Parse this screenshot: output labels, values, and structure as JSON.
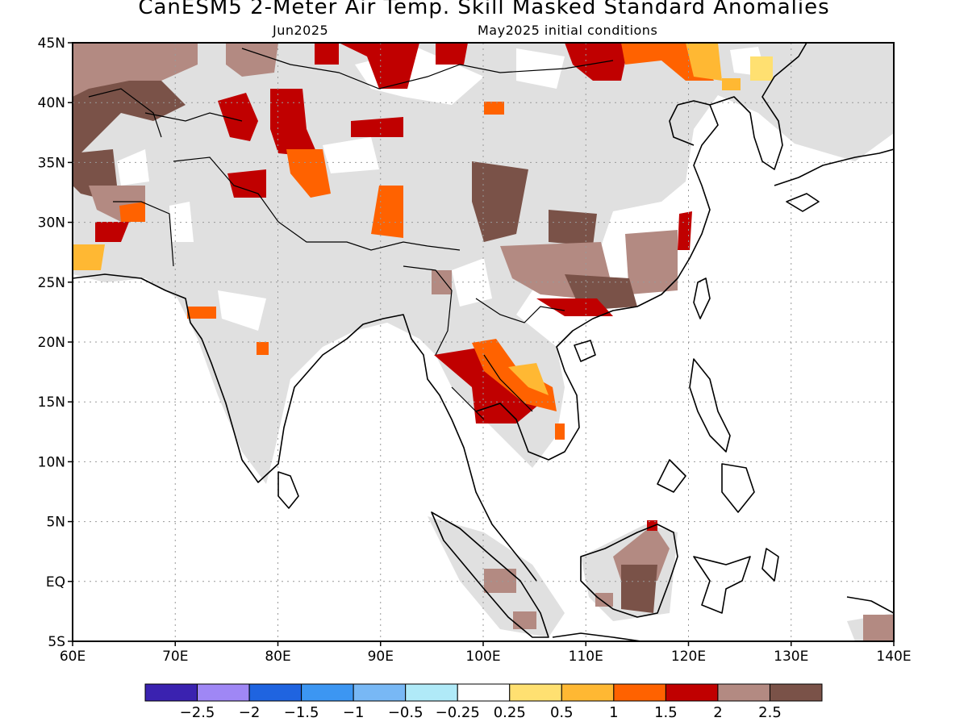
{
  "title": "CanESM5 2-Meter Air Temp. Skill Masked Standard Anomalies",
  "subtitle_left": "Jun2025",
  "subtitle_right": "May2025 initial conditions",
  "map": {
    "lon_range": [
      60,
      140
    ],
    "lat_range": [
      -5,
      45
    ],
    "grid": "dotted",
    "x_ticks": [
      {
        "value": 60,
        "label": "60E"
      },
      {
        "value": 70,
        "label": "70E"
      },
      {
        "value": 80,
        "label": "80E"
      },
      {
        "value": 90,
        "label": "90E"
      },
      {
        "value": 100,
        "label": "100E"
      },
      {
        "value": 110,
        "label": "110E"
      },
      {
        "value": 120,
        "label": "120E"
      },
      {
        "value": 130,
        "label": "130E"
      },
      {
        "value": 140,
        "label": "140E"
      }
    ],
    "y_ticks": [
      {
        "value": 45,
        "label": "45N"
      },
      {
        "value": 40,
        "label": "40N"
      },
      {
        "value": 35,
        "label": "35N"
      },
      {
        "value": 30,
        "label": "30N"
      },
      {
        "value": 25,
        "label": "25N"
      },
      {
        "value": 20,
        "label": "20N"
      },
      {
        "value": 15,
        "label": "15N"
      },
      {
        "value": 10,
        "label": "10N"
      },
      {
        "value": 5,
        "label": "5N"
      },
      {
        "value": 0,
        "label": "EQ"
      },
      {
        "value": -5,
        "label": "5S"
      }
    ],
    "skill_mask_color": "#e0e0e0",
    "anomaly_patches": [
      {
        "level": "2.5+",
        "color": "#7a5248",
        "lon": 62,
        "lat": 42
      },
      {
        "level": "2-2.5",
        "color": "#b38a82",
        "lon": 65,
        "lat": 43
      },
      {
        "level": "2.5+",
        "color": "#7a5248",
        "lon": 63,
        "lat": 37
      },
      {
        "level": "2-2.5",
        "color": "#b38a82",
        "lon": 64,
        "lat": 32
      },
      {
        "level": "1.5-2",
        "color": "#c00000",
        "lon": 62.5,
        "lat": 30
      },
      {
        "level": "0.5-1",
        "color": "#ffb833",
        "lon": 60.5,
        "lat": 27
      },
      {
        "level": "1-1.5",
        "color": "#ff6200",
        "lon": 73,
        "lat": 22.3
      },
      {
        "level": "1-1.5",
        "color": "#ff6200",
        "lon": 78.5,
        "lat": 19.6
      },
      {
        "level": "1.5-2",
        "color": "#c00000",
        "lon": 76.5,
        "lat": 39
      },
      {
        "level": "1.5-2",
        "color": "#c00000",
        "lon": 77,
        "lat": 32.5
      },
      {
        "level": "2-2.5",
        "color": "#b38a82",
        "lon": 78,
        "lat": 44
      },
      {
        "level": "1.5-2",
        "color": "#c00000",
        "lon": 82,
        "lat": 38
      },
      {
        "level": "1-1.5",
        "color": "#ff6200",
        "lon": 84,
        "lat": 34
      },
      {
        "level": "1.5-2",
        "color": "#c00000",
        "lon": 86,
        "lat": 44
      },
      {
        "level": "1.5-2",
        "color": "#c00000",
        "lon": 91,
        "lat": 43.5
      },
      {
        "level": "1.5-2",
        "color": "#c00000",
        "lon": 90,
        "lat": 37.5
      },
      {
        "level": "1-1.5",
        "color": "#ff6200",
        "lon": 91,
        "lat": 31
      },
      {
        "level": "1-1.5",
        "color": "#ff6200",
        "lon": 102,
        "lat": 41
      },
      {
        "level": "1.5-2",
        "color": "#c00000",
        "lon": 97,
        "lat": 44.5
      },
      {
        "level": "2.5+",
        "color": "#7a5248",
        "lon": 101.5,
        "lat": 32.5
      },
      {
        "level": "2.5+",
        "color": "#7a5248",
        "lon": 109.5,
        "lat": 29.5
      },
      {
        "level": "2-2.5",
        "color": "#b38a82",
        "lon": 104,
        "lat": 26
      },
      {
        "level": "2-2.5",
        "color": "#b38a82",
        "lon": 116,
        "lat": 26
      },
      {
        "level": "2.5+",
        "color": "#7a5248",
        "lon": 113,
        "lat": 25
      },
      {
        "level": "1.5-2",
        "color": "#c00000",
        "lon": 111,
        "lat": 22
      },
      {
        "level": "1.5-2",
        "color": "#c00000",
        "lon": 120,
        "lat": 27.5
      },
      {
        "level": "2-2.5",
        "color": "#b38a82",
        "lon": 96.5,
        "lat": 24.5
      },
      {
        "level": "1.5-2",
        "color": "#c00000",
        "lon": 100.5,
        "lat": 16
      },
      {
        "level": "1-1.5",
        "color": "#ff6200",
        "lon": 103,
        "lat": 16
      },
      {
        "level": "0.5-1",
        "color": "#ffb833",
        "lon": 105,
        "lat": 17
      },
      {
        "level": "1.5-2",
        "color": "#c00000",
        "lon": 97.5,
        "lat": 17.7
      },
      {
        "level": "1.5-2",
        "color": "#c00000",
        "lon": 112.5,
        "lat": 44
      },
      {
        "level": "1-1.5",
        "color": "#ff6200",
        "lon": 120,
        "lat": 44
      },
      {
        "level": "0.5-1",
        "color": "#ffb833",
        "lon": 123,
        "lat": 44
      },
      {
        "level": "0.25-0.5",
        "color": "#ffe071",
        "lon": 126.5,
        "lat": 43
      },
      {
        "level": "2.5+",
        "color": "#7a5248",
        "lon": 115.5,
        "lat": 0
      },
      {
        "level": "2-2.5",
        "color": "#b38a82",
        "lon": 117,
        "lat": 2.5
      },
      {
        "level": "2-2.5",
        "color": "#b38a82",
        "lon": 103.5,
        "lat": -0.5
      },
      {
        "level": "2-2.5",
        "color": "#b38a82",
        "lon": 106,
        "lat": -3.5
      },
      {
        "level": "2-2.5",
        "color": "#b38a82",
        "lon": 139,
        "lat": -4
      }
    ]
  },
  "colorbar": {
    "colors": [
      "#3a22b0",
      "#9f87f5",
      "#1f64e0",
      "#3c96f2",
      "#78b8f5",
      "#b0eaf8",
      "#ffffff",
      "#ffe071",
      "#ffb833",
      "#ff6200",
      "#c00000",
      "#b38a82",
      "#7a5248"
    ],
    "labels": [
      "-2.5",
      "-2",
      "-1.5",
      "-1",
      "-0.5",
      "-0.25",
      "0.25",
      "0.5",
      "1",
      "1.5",
      "2",
      "2.5"
    ]
  }
}
